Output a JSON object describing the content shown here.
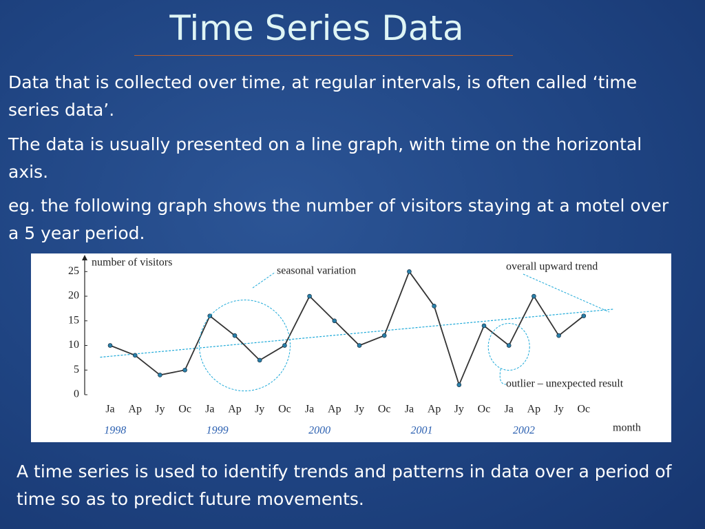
{
  "title": "Time  Series  Data",
  "paragraphs": [
    "Data that is collected over time, at regular intervals, is often called ‘time series data’.",
    "The data is usually presented on a line graph, with time on the horizontal axis.",
    "eg.  the following graph shows the number of visitors staying at a motel over a 5 year period."
  ],
  "conclusion": "A time series is used to identify trends and patterns in data over a period of time so as to predict future movements.",
  "chart_data": {
    "type": "line",
    "y_label": "number of visitors",
    "x_label": "month",
    "categories": [
      "Ja",
      "Ap",
      "Jy",
      "Oc",
      "Ja",
      "Ap",
      "Jy",
      "Oc",
      "Ja",
      "Ap",
      "Jy",
      "Oc",
      "Ja",
      "Ap",
      "Jy",
      "Oc",
      "Ja",
      "Ap",
      "Jy",
      "Oc"
    ],
    "year_labels": [
      "1998",
      "1999",
      "2000",
      "2001",
      "2002"
    ],
    "values": [
      10,
      8,
      4,
      5,
      16,
      12,
      7,
      10,
      20,
      15,
      10,
      12,
      25,
      18,
      2,
      14,
      10,
      20,
      12,
      16
    ],
    "color": "#333333",
    "marker_color": "#2a7fa8",
    "trend_values": [
      7.8,
      16.8
    ],
    "trend_color": "#1aa8d8",
    "ylim": [
      0,
      27
    ],
    "yticks": [
      0,
      5,
      10,
      15,
      20,
      25
    ],
    "annotations": [
      "seasonal variation",
      "overall upward trend",
      "outlier – unexpected result"
    ]
  }
}
